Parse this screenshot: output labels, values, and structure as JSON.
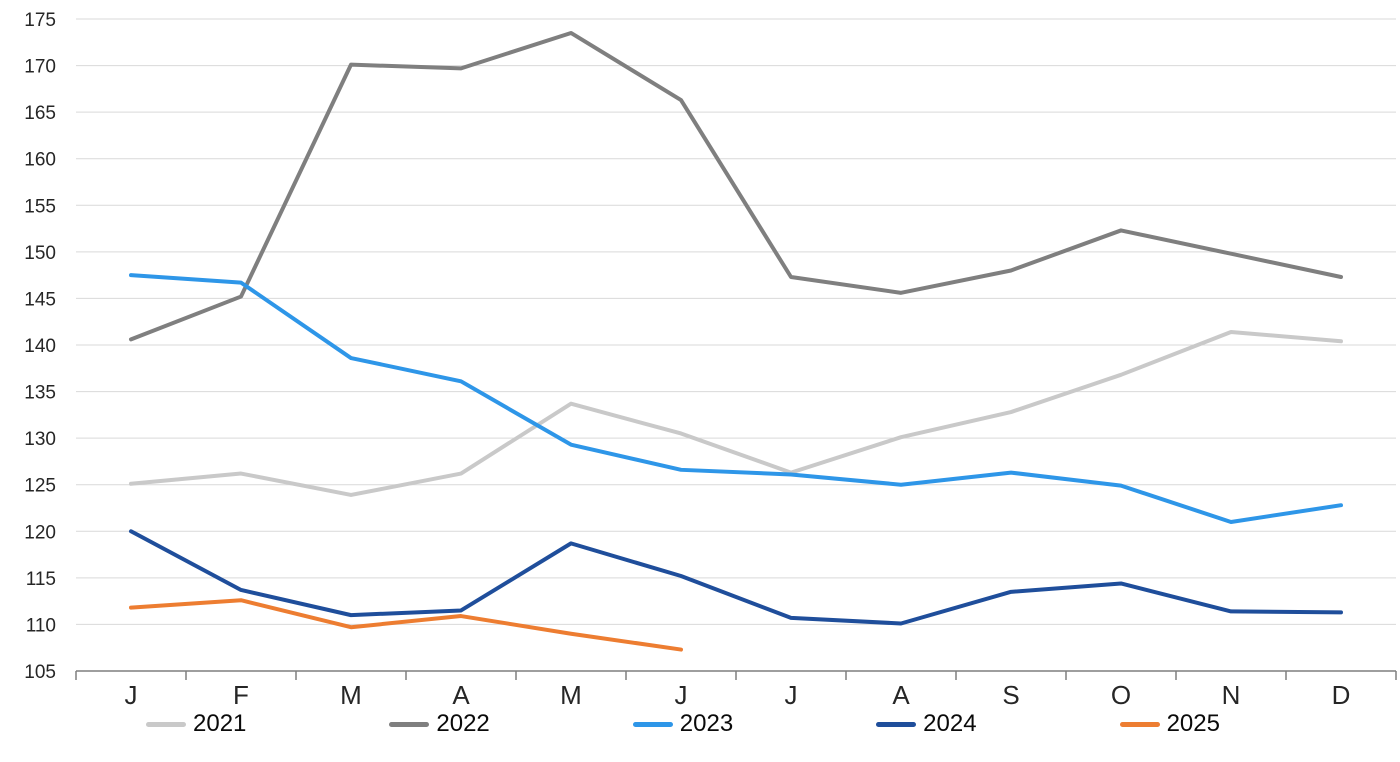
{
  "chart_data": {
    "type": "line",
    "title": "",
    "xlabel": "",
    "ylabel": "",
    "categories": [
      "J",
      "F",
      "M",
      "A",
      "M",
      "J",
      "J",
      "A",
      "S",
      "O",
      "N",
      "D"
    ],
    "y_axis": {
      "min": 105,
      "max": 175,
      "step": 5,
      "tick_labels": [
        "105",
        "110",
        "115",
        "120",
        "125",
        "130",
        "135",
        "140",
        "145",
        "150",
        "155",
        "160",
        "165",
        "170",
        "175"
      ]
    },
    "grid": true,
    "legend_position": "bottom",
    "series": [
      {
        "name": "2021",
        "color": "#C9C9C9",
        "values": [
          125.1,
          126.2,
          123.9,
          126.2,
          133.7,
          130.5,
          126.3,
          130.1,
          132.8,
          136.8,
          141.4,
          140.4
        ]
      },
      {
        "name": "2022",
        "color": "#7F7F7F",
        "values": [
          140.6,
          145.2,
          170.1,
          169.7,
          173.5,
          166.3,
          147.3,
          145.6,
          148.0,
          152.3,
          149.8,
          147.3
        ]
      },
      {
        "name": "2023",
        "color": "#2E96E8",
        "values": [
          147.5,
          146.7,
          138.6,
          136.1,
          129.3,
          126.6,
          126.1,
          125.0,
          126.3,
          124.9,
          121.0,
          122.8
        ]
      },
      {
        "name": "2024",
        "color": "#1F4E9B",
        "values": [
          120.0,
          113.7,
          111.0,
          111.5,
          118.7,
          115.2,
          110.7,
          110.1,
          113.5,
          114.4,
          111.4,
          111.3
        ]
      },
      {
        "name": "2025",
        "color": "#ED7D31",
        "values": [
          111.8,
          112.6,
          109.7,
          110.9,
          109.0,
          107.3
        ]
      }
    ]
  },
  "style_colors": {
    "gridline": "#D9D9D9",
    "axis_line": "#7F7F7F",
    "tick_text": "#262626",
    "background": "#FFFFFF"
  }
}
